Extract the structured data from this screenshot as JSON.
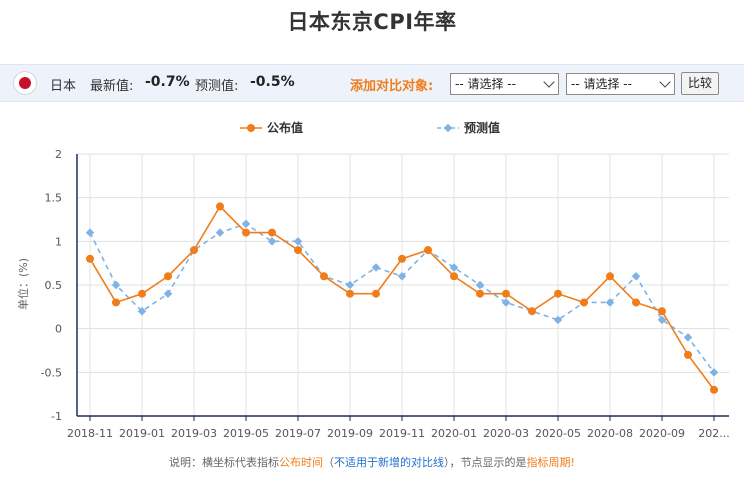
{
  "title": "日本东京CPI年率",
  "info": {
    "country": "日本",
    "latest_label": "最新值:",
    "latest_value": "-0.7%",
    "forecast_label": "预测值:",
    "forecast_value": "-0.5%",
    "compare_label": "添加对比对象:",
    "select1": "-- 请选择 --",
    "select2": "-- 请选择 --",
    "compare_button": "比较",
    "flag_color": "#c8102e"
  },
  "footnote": {
    "p1": "说明：横坐标代表指标",
    "p2": "公布时间",
    "p3": "（",
    "p4": "不适用于新增的对比线",
    "p5": "），节点显示的是",
    "p6": "指标周期!"
  },
  "chart_data": {
    "type": "line",
    "ylabel": "单位：(%)",
    "ylim": [
      -1,
      2
    ],
    "yticks": [
      "2",
      "1.5",
      "1",
      "0.5",
      "0",
      "-0.5",
      "-1"
    ],
    "xtick_labels": [
      "2018-11",
      "2019-01",
      "2019-03",
      "2019-05",
      "2019-07",
      "2019-09",
      "2019-11",
      "2020-01",
      "2020-03",
      "2020-05",
      "2020-08",
      "2020-09",
      "202..."
    ],
    "legend": [
      "公布值",
      "预测值"
    ],
    "series": [
      {
        "name": "公布值",
        "color": "#f07d1a",
        "values": [
          0.8,
          0.3,
          0.4,
          0.6,
          0.9,
          1.4,
          1.1,
          1.1,
          0.9,
          0.6,
          0.4,
          0.4,
          0.8,
          0.9,
          0.6,
          0.4,
          0.4,
          0.2,
          0.4,
          0.3,
          0.6,
          0.3,
          0.2,
          -0.3,
          -0.7
        ]
      },
      {
        "name": "预测值",
        "color": "#7fb2e5",
        "values": [
          1.1,
          0.5,
          0.2,
          0.4,
          0.9,
          1.1,
          1.2,
          1.0,
          1.0,
          0.6,
          0.5,
          0.7,
          0.6,
          0.9,
          0.7,
          0.5,
          0.3,
          0.2,
          0.1,
          0.3,
          0.3,
          0.6,
          0.1,
          -0.1,
          -0.5
        ]
      }
    ]
  }
}
